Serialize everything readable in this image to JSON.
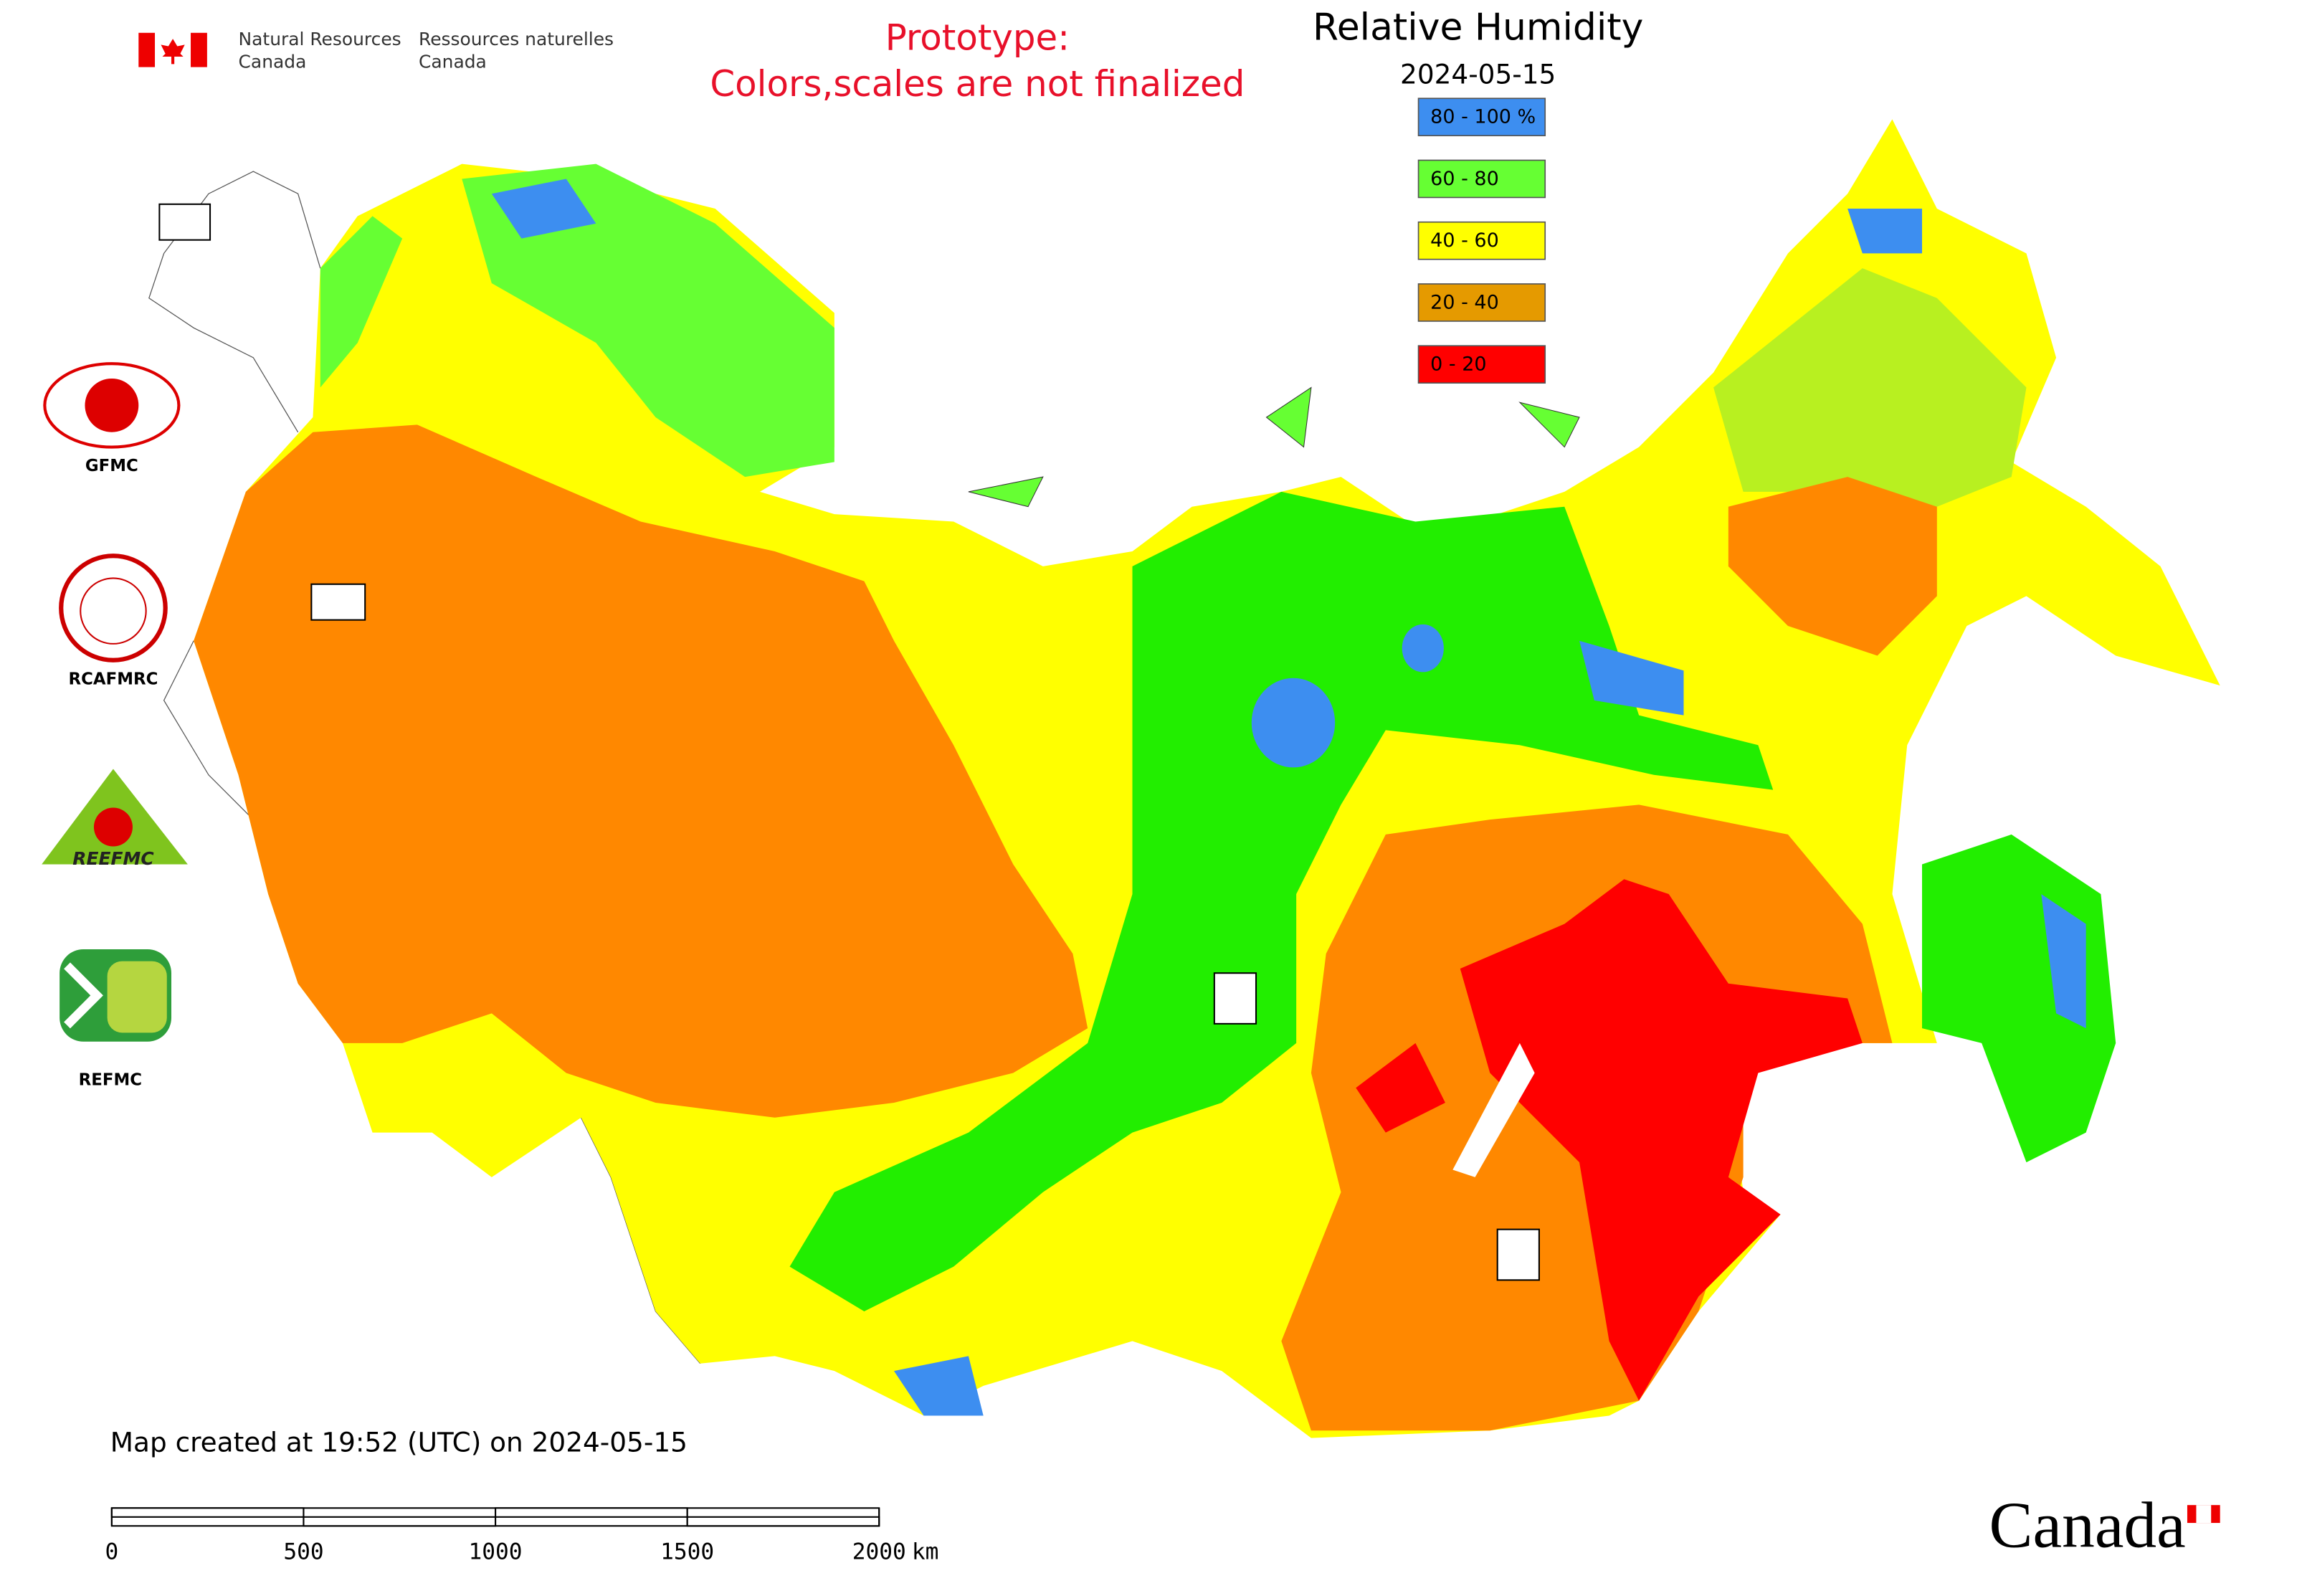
{
  "header": {
    "en_line1": "Natural Resources",
    "en_line2": "Canada",
    "fr_line1": "Ressources naturelles",
    "fr_line2": "Canada"
  },
  "notice": {
    "line1": "Prototype:",
    "line2": "Colors,scales are not finalized"
  },
  "title": "Relative Humidity",
  "date": "2024-05-15",
  "legend": [
    {
      "label": "80 - 100 %",
      "color": "#3d8ef0"
    },
    {
      "label": "60 - 80",
      "color": "#66ff33"
    },
    {
      "label": "40 - 60",
      "color": "#ffff00"
    },
    {
      "label": "20 - 40",
      "color": "#e59a00"
    },
    {
      "label": "0 - 20",
      "color": "#ff0000"
    }
  ],
  "logos": {
    "gfmc": "GFMC",
    "rcafmrc": "RCAFMRC",
    "reefmc_mark": "REEFMC",
    "refmc": "REFMC"
  },
  "footer": "Map created at 19:52 (UTC) on 2024-05-15",
  "scale_bar": {
    "ticks": [
      0,
      500,
      1000,
      1500,
      2000
    ],
    "unit": "km"
  },
  "wordmark": "Canada"
}
